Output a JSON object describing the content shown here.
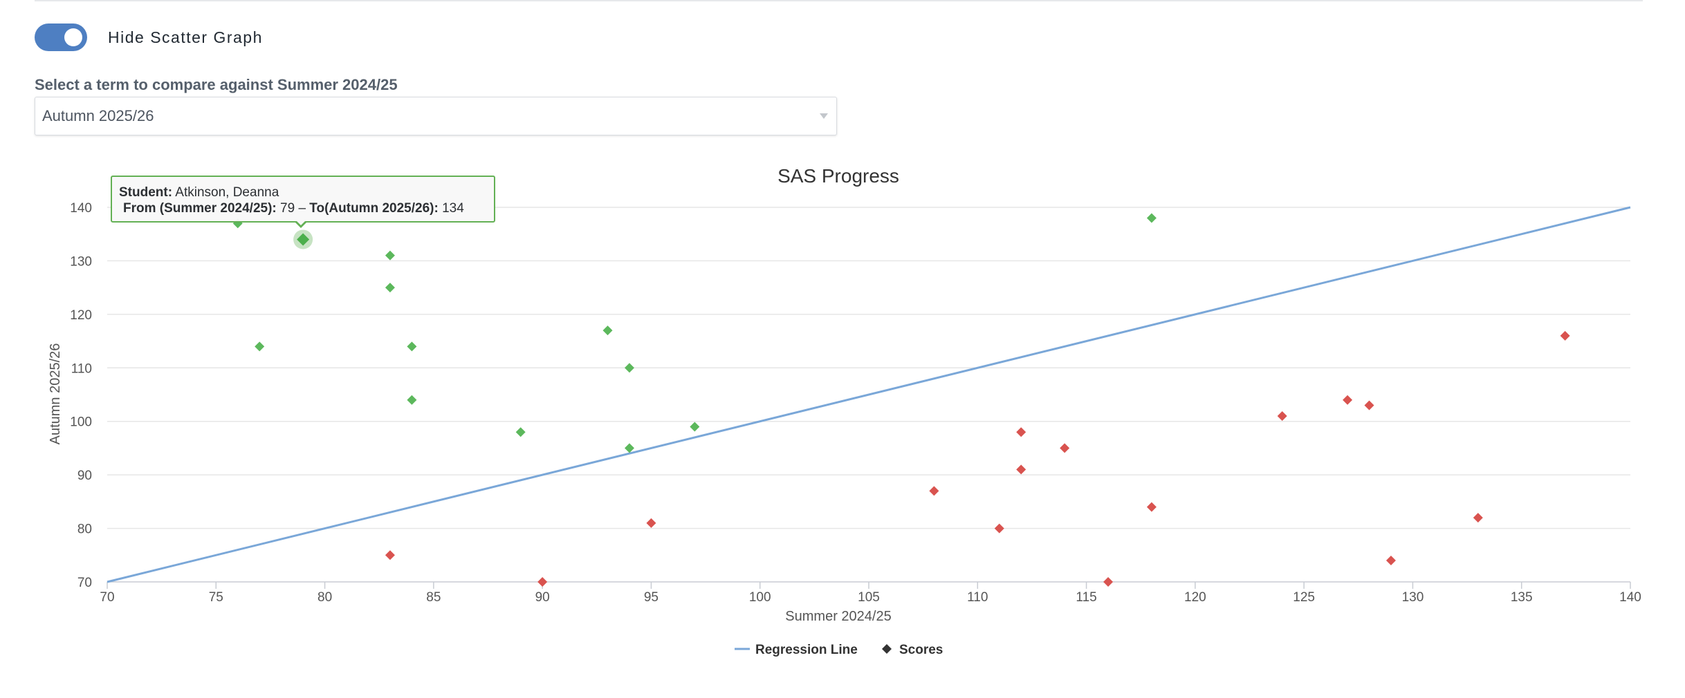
{
  "toggle": {
    "label": "Hide Scatter Graph",
    "on": true,
    "color": "#4e7fc2"
  },
  "term_select": {
    "label": "Select a term to compare against Summer 2024/25",
    "value": "Autumn 2025/26"
  },
  "tooltip": {
    "student_label": "Student:",
    "student_name": "Atkinson, Deanna",
    "from_label": "From (Summer 2024/25):",
    "from_value": "79",
    "separator": " – ",
    "to_label": "To(Autumn 2025/26):",
    "to_value": "134"
  },
  "chart_data": {
    "type": "scatter",
    "title": "SAS Progress",
    "xlabel": "Summer 2024/25",
    "ylabel": "Autumn 2025/26",
    "xlim": [
      70,
      140
    ],
    "ylim": [
      70,
      140
    ],
    "x_ticks": [
      70,
      75,
      80,
      85,
      90,
      95,
      100,
      105,
      110,
      115,
      120,
      125,
      130,
      135,
      140
    ],
    "y_ticks": [
      70,
      80,
      90,
      100,
      110,
      120,
      130,
      140
    ],
    "grid": true,
    "legend_position": "bottom-center",
    "colors": {
      "regression": "#7aa7d8",
      "improved": "#5cb85c",
      "declined": "#d9534f",
      "legend_marker": "#333333",
      "highlight_halo": "#b9dcb4"
    },
    "series": [
      {
        "name": "Regression Line",
        "type": "line",
        "points": [
          [
            70,
            70
          ],
          [
            140,
            140
          ]
        ]
      },
      {
        "name": "Scores",
        "type": "scatter",
        "marker": "diamond",
        "points": [
          {
            "x": 76,
            "y": 137,
            "color": "green"
          },
          {
            "x": 79,
            "y": 134,
            "color": "green",
            "highlighted": true
          },
          {
            "x": 83,
            "y": 131,
            "color": "green"
          },
          {
            "x": 83,
            "y": 125,
            "color": "green"
          },
          {
            "x": 77,
            "y": 114,
            "color": "green"
          },
          {
            "x": 84,
            "y": 114,
            "color": "green"
          },
          {
            "x": 84,
            "y": 104,
            "color": "green"
          },
          {
            "x": 89,
            "y": 98,
            "color": "green"
          },
          {
            "x": 93,
            "y": 117,
            "color": "green"
          },
          {
            "x": 94,
            "y": 110,
            "color": "green"
          },
          {
            "x": 94,
            "y": 95,
            "color": "green"
          },
          {
            "x": 97,
            "y": 99,
            "color": "green"
          },
          {
            "x": 118,
            "y": 138,
            "color": "green"
          },
          {
            "x": 83,
            "y": 75,
            "color": "red"
          },
          {
            "x": 90,
            "y": 70,
            "color": "red"
          },
          {
            "x": 95,
            "y": 81,
            "color": "red"
          },
          {
            "x": 108,
            "y": 87,
            "color": "red"
          },
          {
            "x": 111,
            "y": 80,
            "color": "red"
          },
          {
            "x": 112,
            "y": 98,
            "color": "red"
          },
          {
            "x": 112,
            "y": 91,
            "color": "red"
          },
          {
            "x": 114,
            "y": 95,
            "color": "red"
          },
          {
            "x": 116,
            "y": 70,
            "color": "red"
          },
          {
            "x": 118,
            "y": 84,
            "color": "red"
          },
          {
            "x": 124,
            "y": 101,
            "color": "red"
          },
          {
            "x": 127,
            "y": 104,
            "color": "red"
          },
          {
            "x": 128,
            "y": 103,
            "color": "red"
          },
          {
            "x": 129,
            "y": 74,
            "color": "red"
          },
          {
            "x": 133,
            "y": 82,
            "color": "red"
          },
          {
            "x": 137,
            "y": 116,
            "color": "red"
          }
        ]
      }
    ]
  }
}
